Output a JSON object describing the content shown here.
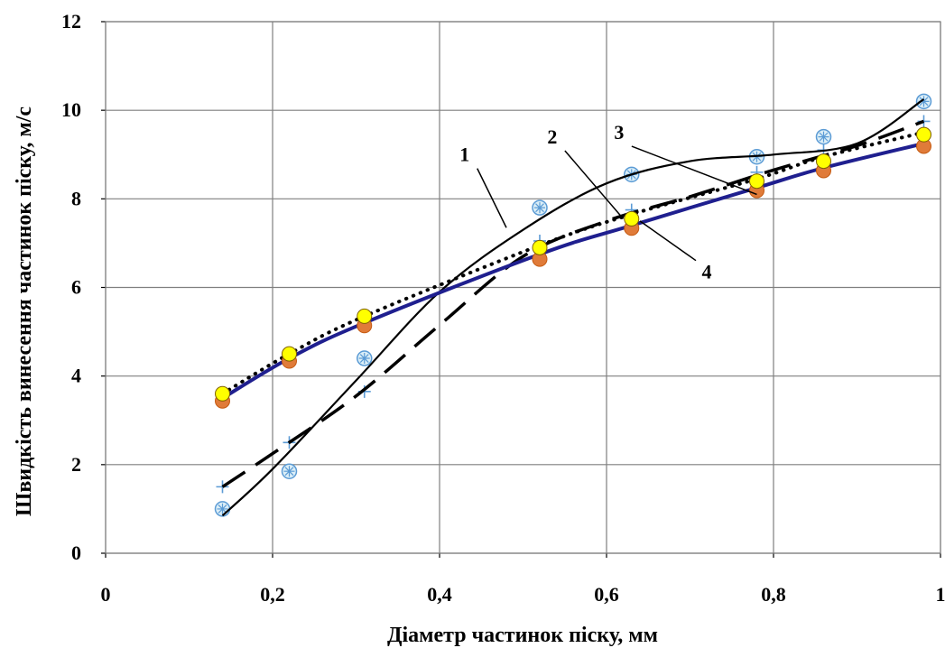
{
  "chart_data": {
    "type": "scatter",
    "xlabel": "Діаметр частинок піску, мм",
    "ylabel": "Швидкість винесення частинок піску, м/с",
    "xlim": [
      0,
      1
    ],
    "ylim": [
      0,
      12
    ],
    "x_ticks": [
      "0",
      "0,2",
      "0,4",
      "0,6",
      "0,8",
      "1"
    ],
    "y_ticks": [
      "0",
      "2",
      "4",
      "6",
      "8",
      "10",
      "12"
    ],
    "grid": true,
    "colors": {
      "curve1_line": "#000000",
      "curve1_marker": "#5b9bd5",
      "curve1_marker_fill": "#dbeef7",
      "curve2_line": "#000000",
      "curve2_marker": "#5b9bd5",
      "curve3_line": "#000000",
      "curve3_marker_fill": "#ffff00",
      "curve4_line": "#1f1f8f",
      "curve4_marker_fill": "#e07b39"
    },
    "series": [
      {
        "name": "1",
        "line_style": "solid-thin-smooth",
        "marker": "circle-asterisk",
        "points": [
          [
            0.14,
            1.0
          ],
          [
            0.22,
            1.85
          ],
          [
            0.31,
            4.4
          ],
          [
            0.52,
            7.8
          ],
          [
            0.63,
            8.55
          ],
          [
            0.78,
            8.95
          ],
          [
            0.86,
            9.4
          ],
          [
            0.98,
            10.2
          ]
        ],
        "fit": [
          [
            0.14,
            0.85
          ],
          [
            0.2,
            1.9
          ],
          [
            0.3,
            3.9
          ],
          [
            0.4,
            5.9
          ],
          [
            0.5,
            7.3
          ],
          [
            0.6,
            8.35
          ],
          [
            0.7,
            8.85
          ],
          [
            0.8,
            9.0
          ],
          [
            0.9,
            9.25
          ],
          [
            0.98,
            10.25
          ]
        ]
      },
      {
        "name": "2",
        "line_style": "dashed",
        "marker": "plus",
        "points": [
          [
            0.14,
            1.5
          ],
          [
            0.22,
            2.5
          ],
          [
            0.31,
            3.65
          ],
          [
            0.52,
            7.05
          ],
          [
            0.63,
            7.75
          ],
          [
            0.78,
            8.6
          ],
          [
            0.86,
            9.1
          ],
          [
            0.98,
            9.75
          ]
        ],
        "fit": [
          [
            0.14,
            1.5
          ],
          [
            0.2,
            2.25
          ],
          [
            0.3,
            3.55
          ],
          [
            0.4,
            5.15
          ],
          [
            0.5,
            6.7
          ],
          [
            0.6,
            7.5
          ],
          [
            0.7,
            8.05
          ],
          [
            0.8,
            8.65
          ],
          [
            0.9,
            9.2
          ],
          [
            0.98,
            9.75
          ]
        ]
      },
      {
        "name": "3",
        "line_style": "dotted",
        "marker": "circle-yellow",
        "points": [
          [
            0.14,
            3.6
          ],
          [
            0.22,
            4.5
          ],
          [
            0.31,
            5.35
          ],
          [
            0.52,
            6.9
          ],
          [
            0.63,
            7.55
          ],
          [
            0.78,
            8.4
          ],
          [
            0.86,
            8.85
          ],
          [
            0.98,
            9.45
          ]
        ],
        "fit": [
          [
            0.14,
            3.6
          ],
          [
            0.22,
            4.5
          ],
          [
            0.31,
            5.35
          ],
          [
            0.52,
            6.95
          ],
          [
            0.63,
            7.65
          ],
          [
            0.78,
            8.45
          ],
          [
            0.86,
            8.95
          ],
          [
            0.98,
            9.5
          ]
        ]
      },
      {
        "name": "4",
        "line_style": "solid-thick",
        "marker": "circle-orange",
        "points": [
          [
            0.14,
            3.5
          ],
          [
            0.22,
            4.4
          ],
          [
            0.31,
            5.2
          ],
          [
            0.52,
            6.7
          ],
          [
            0.63,
            7.4
          ],
          [
            0.78,
            8.25
          ],
          [
            0.86,
            8.7
          ],
          [
            0.98,
            9.25
          ]
        ],
        "fit": [
          [
            0.14,
            3.5
          ],
          [
            0.22,
            4.4
          ],
          [
            0.31,
            5.2
          ],
          [
            0.52,
            6.75
          ],
          [
            0.63,
            7.4
          ],
          [
            0.78,
            8.25
          ],
          [
            0.86,
            8.7
          ],
          [
            0.98,
            9.25
          ]
        ]
      }
    ],
    "callouts": [
      {
        "label": "1",
        "text_at": [
          0.43,
          8.85
        ],
        "line_to": [
          0.48,
          7.35
        ]
      },
      {
        "label": "2",
        "text_at": [
          0.535,
          9.25
        ],
        "line_to": [
          0.62,
          7.55
        ]
      },
      {
        "label": "3",
        "text_at": [
          0.615,
          9.35
        ],
        "line_to": [
          0.78,
          8.1
        ]
      },
      {
        "label": "4",
        "text_at": [
          0.72,
          6.2
        ],
        "line_to": [
          0.64,
          7.5
        ]
      }
    ]
  }
}
